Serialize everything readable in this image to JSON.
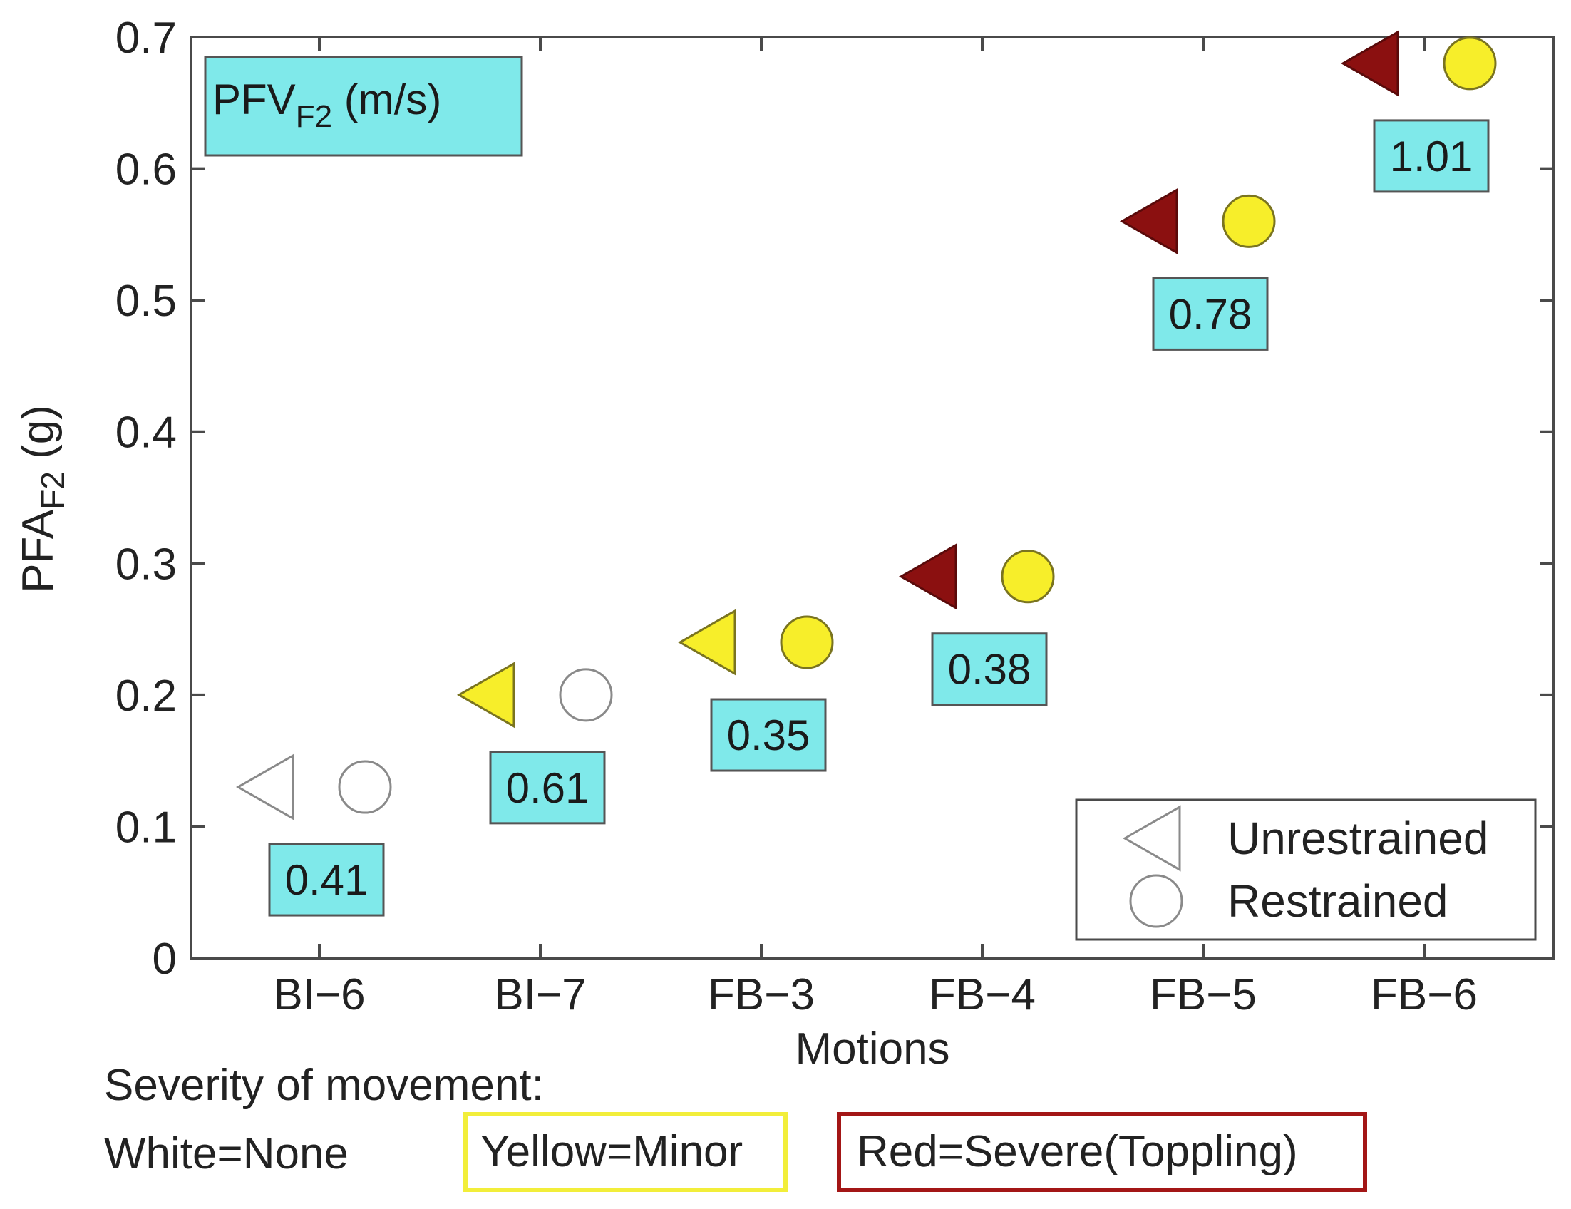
{
  "chart_data": {
    "type": "scatter",
    "xlabel": "Motions",
    "ylabel_main": "PFA",
    "ylabel_sub": "F2",
    "ylabel_unit": " (g)",
    "ylim": [
      0,
      0.7
    ],
    "yticks": [
      0,
      0.1,
      0.2,
      0.3,
      0.4,
      0.5,
      0.6,
      0.7
    ],
    "ytick_labels": [
      "0",
      "0.1",
      "0.2",
      "0.3",
      "0.4",
      "0.5",
      "0.6",
      "0.7"
    ],
    "categories": [
      "BI−6",
      "BI−7",
      "FB−3",
      "FB−4",
      "FB−5",
      "FB−6"
    ],
    "grid": false,
    "pfv_box": {
      "main": "PFV",
      "sub": "F2",
      "unit": " (m/s)"
    },
    "pfv_values": [
      "0.41",
      "0.61",
      "0.35",
      "0.38",
      "0.78",
      "1.01"
    ],
    "series": [
      {
        "name": "Unrestrained",
        "marker": "triangle-left",
        "values": [
          0.13,
          0.2,
          0.24,
          0.29,
          0.56,
          0.68
        ],
        "severity": [
          "none",
          "minor",
          "minor",
          "severe",
          "severe",
          "severe"
        ]
      },
      {
        "name": "Restrained",
        "marker": "circle",
        "values": [
          0.13,
          0.2,
          0.24,
          0.29,
          0.56,
          0.68
        ],
        "severity": [
          "none",
          "none",
          "minor",
          "minor",
          "minor",
          "minor"
        ]
      }
    ],
    "severity_colors": {
      "none": "#ffffff",
      "minor": "#f7ee2a",
      "severe": "#8b1010"
    },
    "legend_position": "bottom-right",
    "label_box_color": "#7fe9ea"
  },
  "severity_legend": {
    "title": "Severity of movement:",
    "none": "White=None",
    "minor": "Yellow=Minor",
    "severe": "Red=Severe(Toppling)"
  }
}
